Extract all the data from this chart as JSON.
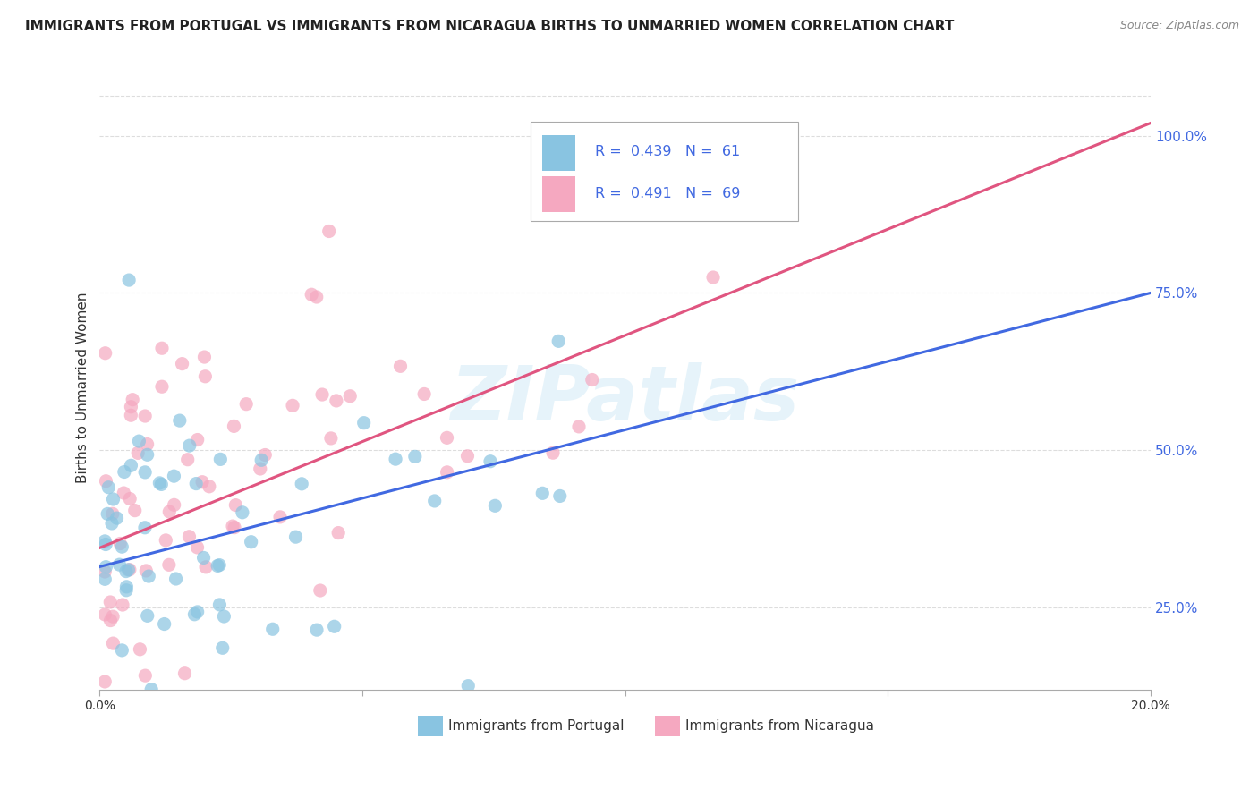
{
  "title": "IMMIGRANTS FROM PORTUGAL VS IMMIGRANTS FROM NICARAGUA BIRTHS TO UNMARRIED WOMEN CORRELATION CHART",
  "source": "Source: ZipAtlas.com",
  "xlabel_bottom_portugal": "Immigrants from Portugal",
  "xlabel_bottom_nicaragua": "Immigrants from Nicaragua",
  "ylabel": "Births to Unmarried Women",
  "watermark": "ZIPatlas",
  "portugal_color": "#89c4e1",
  "nicaragua_color": "#f5a8c0",
  "portugal_line_color": "#4169e1",
  "nicaragua_line_color": "#e05580",
  "R_portugal": 0.439,
  "N_portugal": 61,
  "R_nicaragua": 0.491,
  "N_nicaragua": 69,
  "xlim": [
    0.0,
    0.2
  ],
  "ylim": [
    0.12,
    1.08
  ],
  "port_line_x0": 0.0,
  "port_line_y0": 0.315,
  "port_line_x1": 0.2,
  "port_line_y1": 0.75,
  "nic_line_x0": 0.0,
  "nic_line_y0": 0.345,
  "nic_line_x1": 0.2,
  "nic_line_y1": 1.02,
  "yticks": [
    0.25,
    0.5,
    0.75,
    1.0
  ],
  "ytick_labels": [
    "25.0%",
    "50.0%",
    "75.0%",
    "100.0%"
  ],
  "xticks": [
    0.0,
    0.05,
    0.1,
    0.15,
    0.2
  ],
  "xtick_labels": [
    "0.0%",
    "",
    "",
    "",
    "20.0%"
  ],
  "title_fontsize": 11,
  "axis_fontsize": 11
}
